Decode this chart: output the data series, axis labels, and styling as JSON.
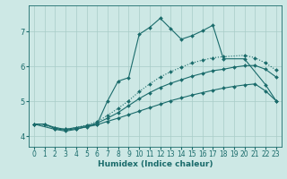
{
  "xlabel": "Humidex (Indice chaleur)",
  "bg_color": "#cde8e5",
  "grid_color": "#a8ccc8",
  "line_color": "#1a6b6b",
  "ylim": [
    3.7,
    7.75
  ],
  "xlim": [
    -0.5,
    23.5
  ],
  "yticks": [
    4,
    5,
    6,
    7
  ],
  "xticks": [
    0,
    1,
    2,
    3,
    4,
    5,
    6,
    7,
    8,
    9,
    10,
    11,
    12,
    13,
    14,
    15,
    16,
    17,
    18,
    19,
    20,
    21,
    22,
    23
  ],
  "line1_x": [
    0,
    1,
    2,
    3,
    4,
    5,
    6,
    7,
    8,
    9,
    10,
    11,
    12,
    13,
    14,
    15,
    16,
    17,
    18,
    19,
    20,
    21,
    22,
    23
  ],
  "line1_y": [
    4.35,
    4.35,
    4.22,
    4.18,
    4.22,
    4.27,
    4.33,
    4.43,
    4.52,
    4.62,
    4.72,
    4.82,
    4.92,
    5.02,
    5.1,
    5.18,
    5.25,
    5.32,
    5.38,
    5.43,
    5.47,
    5.5,
    5.3,
    5.02
  ],
  "line2_x": [
    0,
    1,
    2,
    3,
    4,
    5,
    6,
    7,
    8,
    9,
    10,
    11,
    12,
    13,
    14,
    15,
    16,
    17,
    18,
    19,
    20,
    21,
    22,
    23
  ],
  "line2_y": [
    4.35,
    4.35,
    4.25,
    4.2,
    4.25,
    4.3,
    4.38,
    4.52,
    4.68,
    4.88,
    5.08,
    5.25,
    5.4,
    5.52,
    5.62,
    5.72,
    5.8,
    5.88,
    5.92,
    5.98,
    6.02,
    6.03,
    5.92,
    5.7
  ],
  "line3_x": [
    0,
    2,
    3,
    4,
    5,
    6,
    7,
    8,
    9,
    10,
    11,
    12,
    13,
    14,
    15,
    16,
    17,
    18,
    20,
    21,
    22,
    23
  ],
  "line3_y": [
    4.35,
    4.25,
    4.2,
    4.25,
    4.32,
    4.42,
    4.6,
    4.8,
    5.02,
    5.28,
    5.5,
    5.7,
    5.85,
    5.98,
    6.1,
    6.18,
    6.25,
    6.28,
    6.32,
    6.25,
    6.1,
    5.9
  ],
  "line4_x": [
    0,
    2,
    3,
    4,
    6,
    7,
    8,
    9,
    10,
    11,
    12,
    13,
    14,
    15,
    16,
    17,
    18,
    20,
    22,
    23
  ],
  "line4_y": [
    4.35,
    4.2,
    4.15,
    4.2,
    4.35,
    5.02,
    5.58,
    5.68,
    6.92,
    7.12,
    7.38,
    7.08,
    6.78,
    6.88,
    7.02,
    7.18,
    6.22,
    6.22,
    5.48,
    5.02
  ],
  "marker_size": 2.0,
  "line_width": 0.8,
  "fontsize_xlabel": 6.5,
  "fontsize_ticks": 5.5
}
